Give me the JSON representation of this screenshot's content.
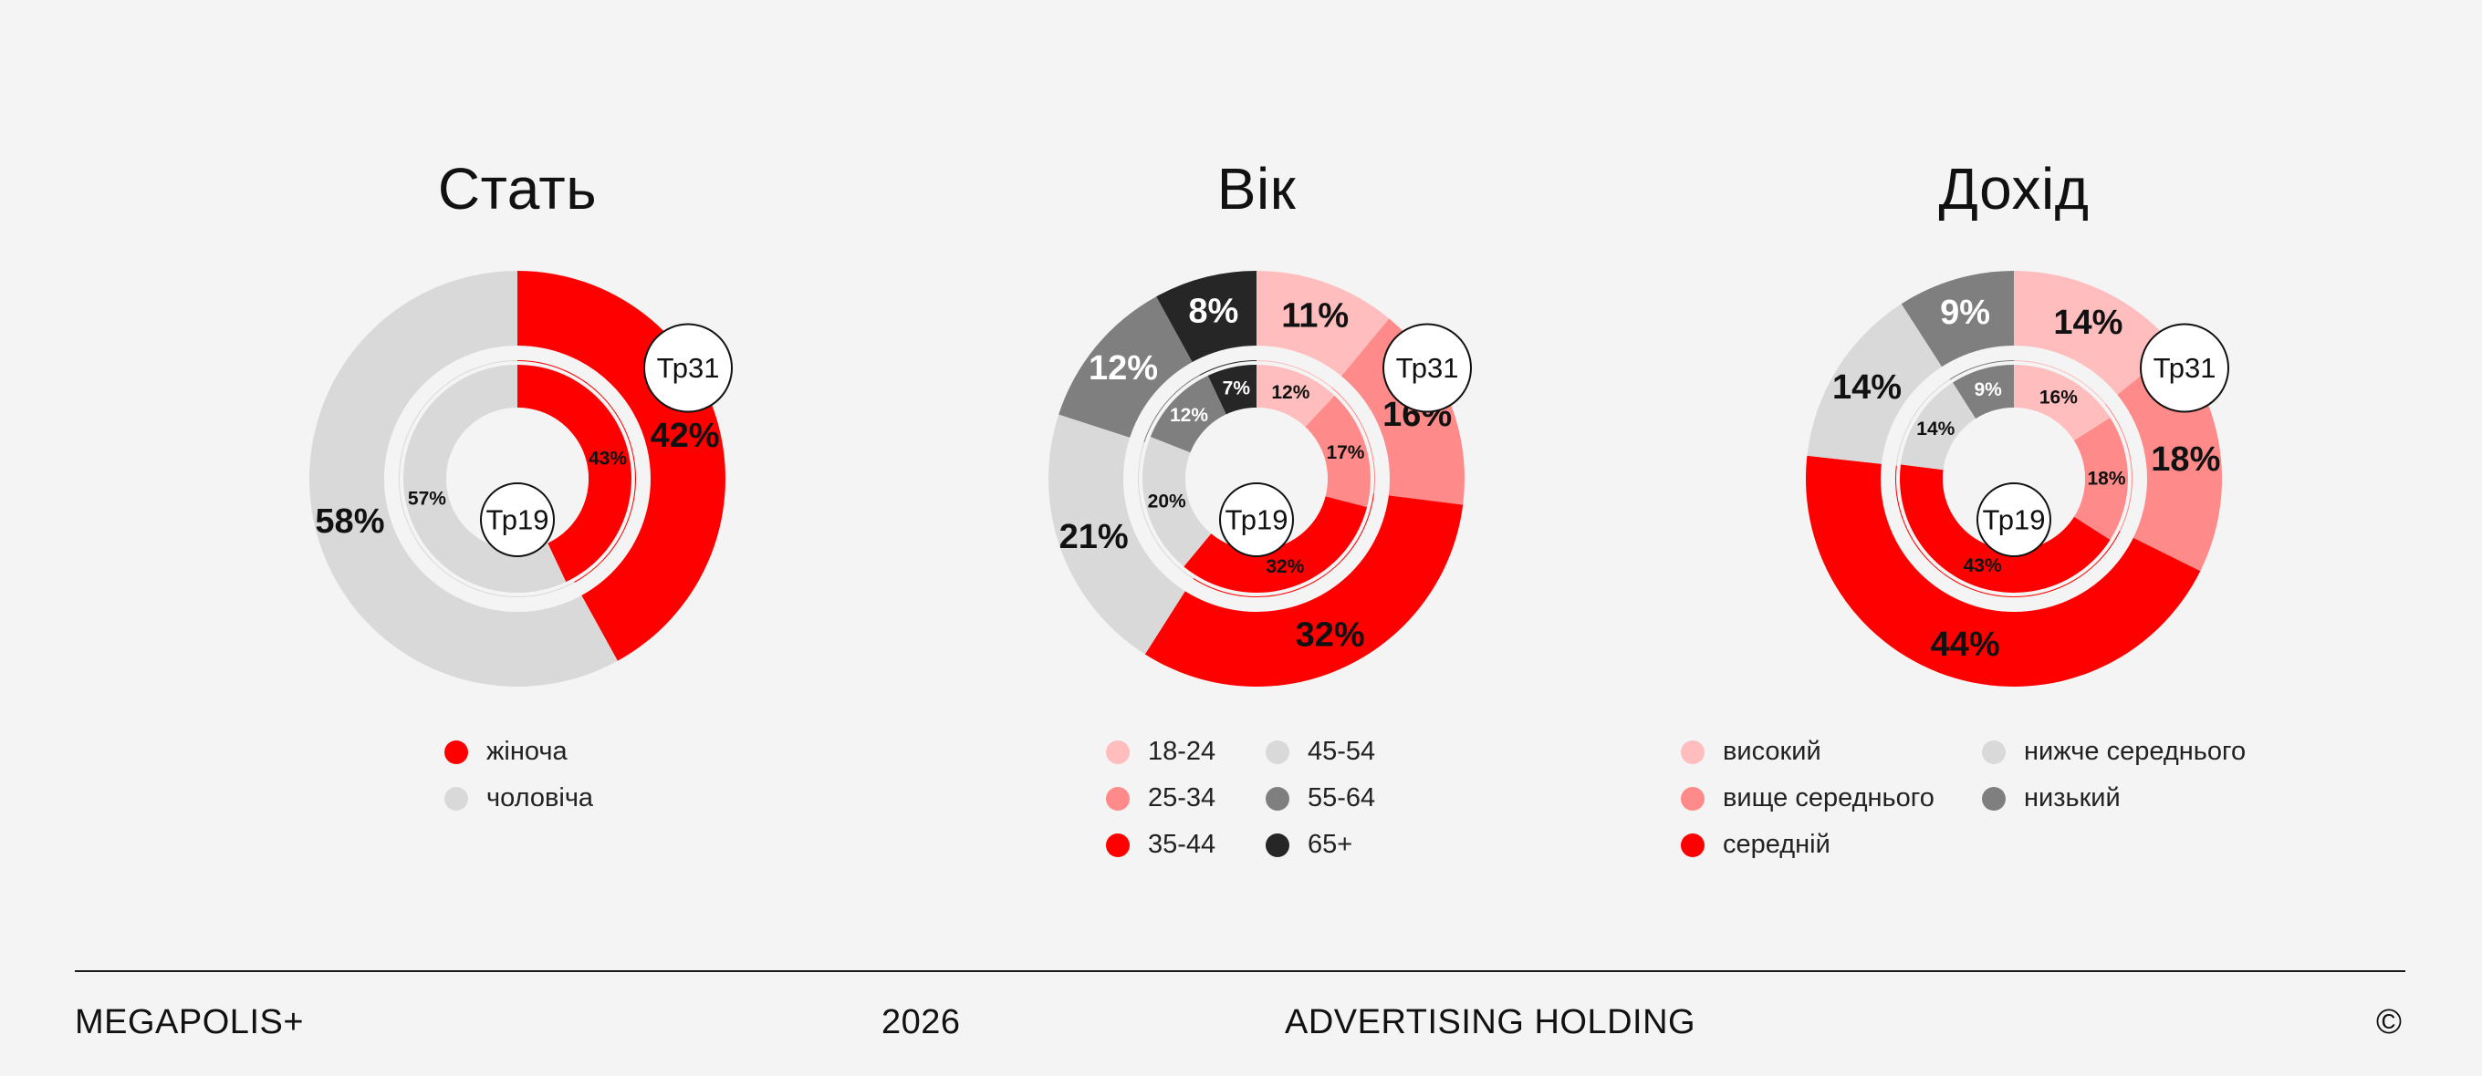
{
  "chart_data": [
    {
      "type": "pie",
      "title": "Стать",
      "outer_ring_label": "Тр31",
      "inner_ring_label": "Тр19",
      "categories": [
        "жіноча",
        "чоловіча"
      ],
      "colors": [
        "#ff0000",
        "#d9d9d9"
      ],
      "series": [
        {
          "name": "Тр31",
          "values": [
            42,
            58
          ],
          "labels": [
            "42%",
            "58%"
          ]
        },
        {
          "name": "Тр19",
          "values": [
            43,
            57
          ],
          "labels": [
            "43%",
            "57%"
          ]
        }
      ]
    },
    {
      "type": "pie",
      "title": "Вік",
      "outer_ring_label": "Тр31",
      "inner_ring_label": "Тр19",
      "categories": [
        "18-24",
        "25-34",
        "35-44",
        "45-54",
        "55-64",
        "65+"
      ],
      "colors": [
        "#ffbdbd",
        "#ff8a8a",
        "#ff0000",
        "#d9d9d9",
        "#7f7f7f",
        "#262626"
      ],
      "series": [
        {
          "name": "Тр31",
          "values": [
            11,
            16,
            32,
            21,
            12,
            8
          ],
          "labels": [
            "11%",
            "16%",
            "32%",
            "21%",
            "12%",
            "8%"
          ]
        },
        {
          "name": "Тр19",
          "values": [
            12,
            17,
            32,
            20,
            12,
            7
          ],
          "labels": [
            "12%",
            "17%",
            "32%",
            "20%",
            "12%",
            "7%"
          ]
        }
      ]
    },
    {
      "type": "pie",
      "title": "Дохід",
      "outer_ring_label": "Тр31",
      "inner_ring_label": "Тр19",
      "categories": [
        "високий",
        "вище середнього",
        "середній",
        "нижче середнього",
        "низький"
      ],
      "colors": [
        "#ffbdbd",
        "#ff8a8a",
        "#ff0000",
        "#d9d9d9",
        "#7f7f7f"
      ],
      "series": [
        {
          "name": "Тр31",
          "values": [
            14,
            18,
            44,
            14,
            9
          ],
          "labels": [
            "14%",
            "18%",
            "44%",
            "14%",
            "9%"
          ]
        },
        {
          "name": "Тр19",
          "values": [
            16,
            18,
            43,
            14,
            9
          ],
          "labels": [
            "16%",
            "18%",
            "43%",
            "14%",
            "9%"
          ]
        }
      ]
    }
  ],
  "footer": {
    "brand": "MEGAPOLIS+",
    "year": "2026",
    "tagline": "ADVERTISING HOLDING",
    "copyright": "©"
  }
}
